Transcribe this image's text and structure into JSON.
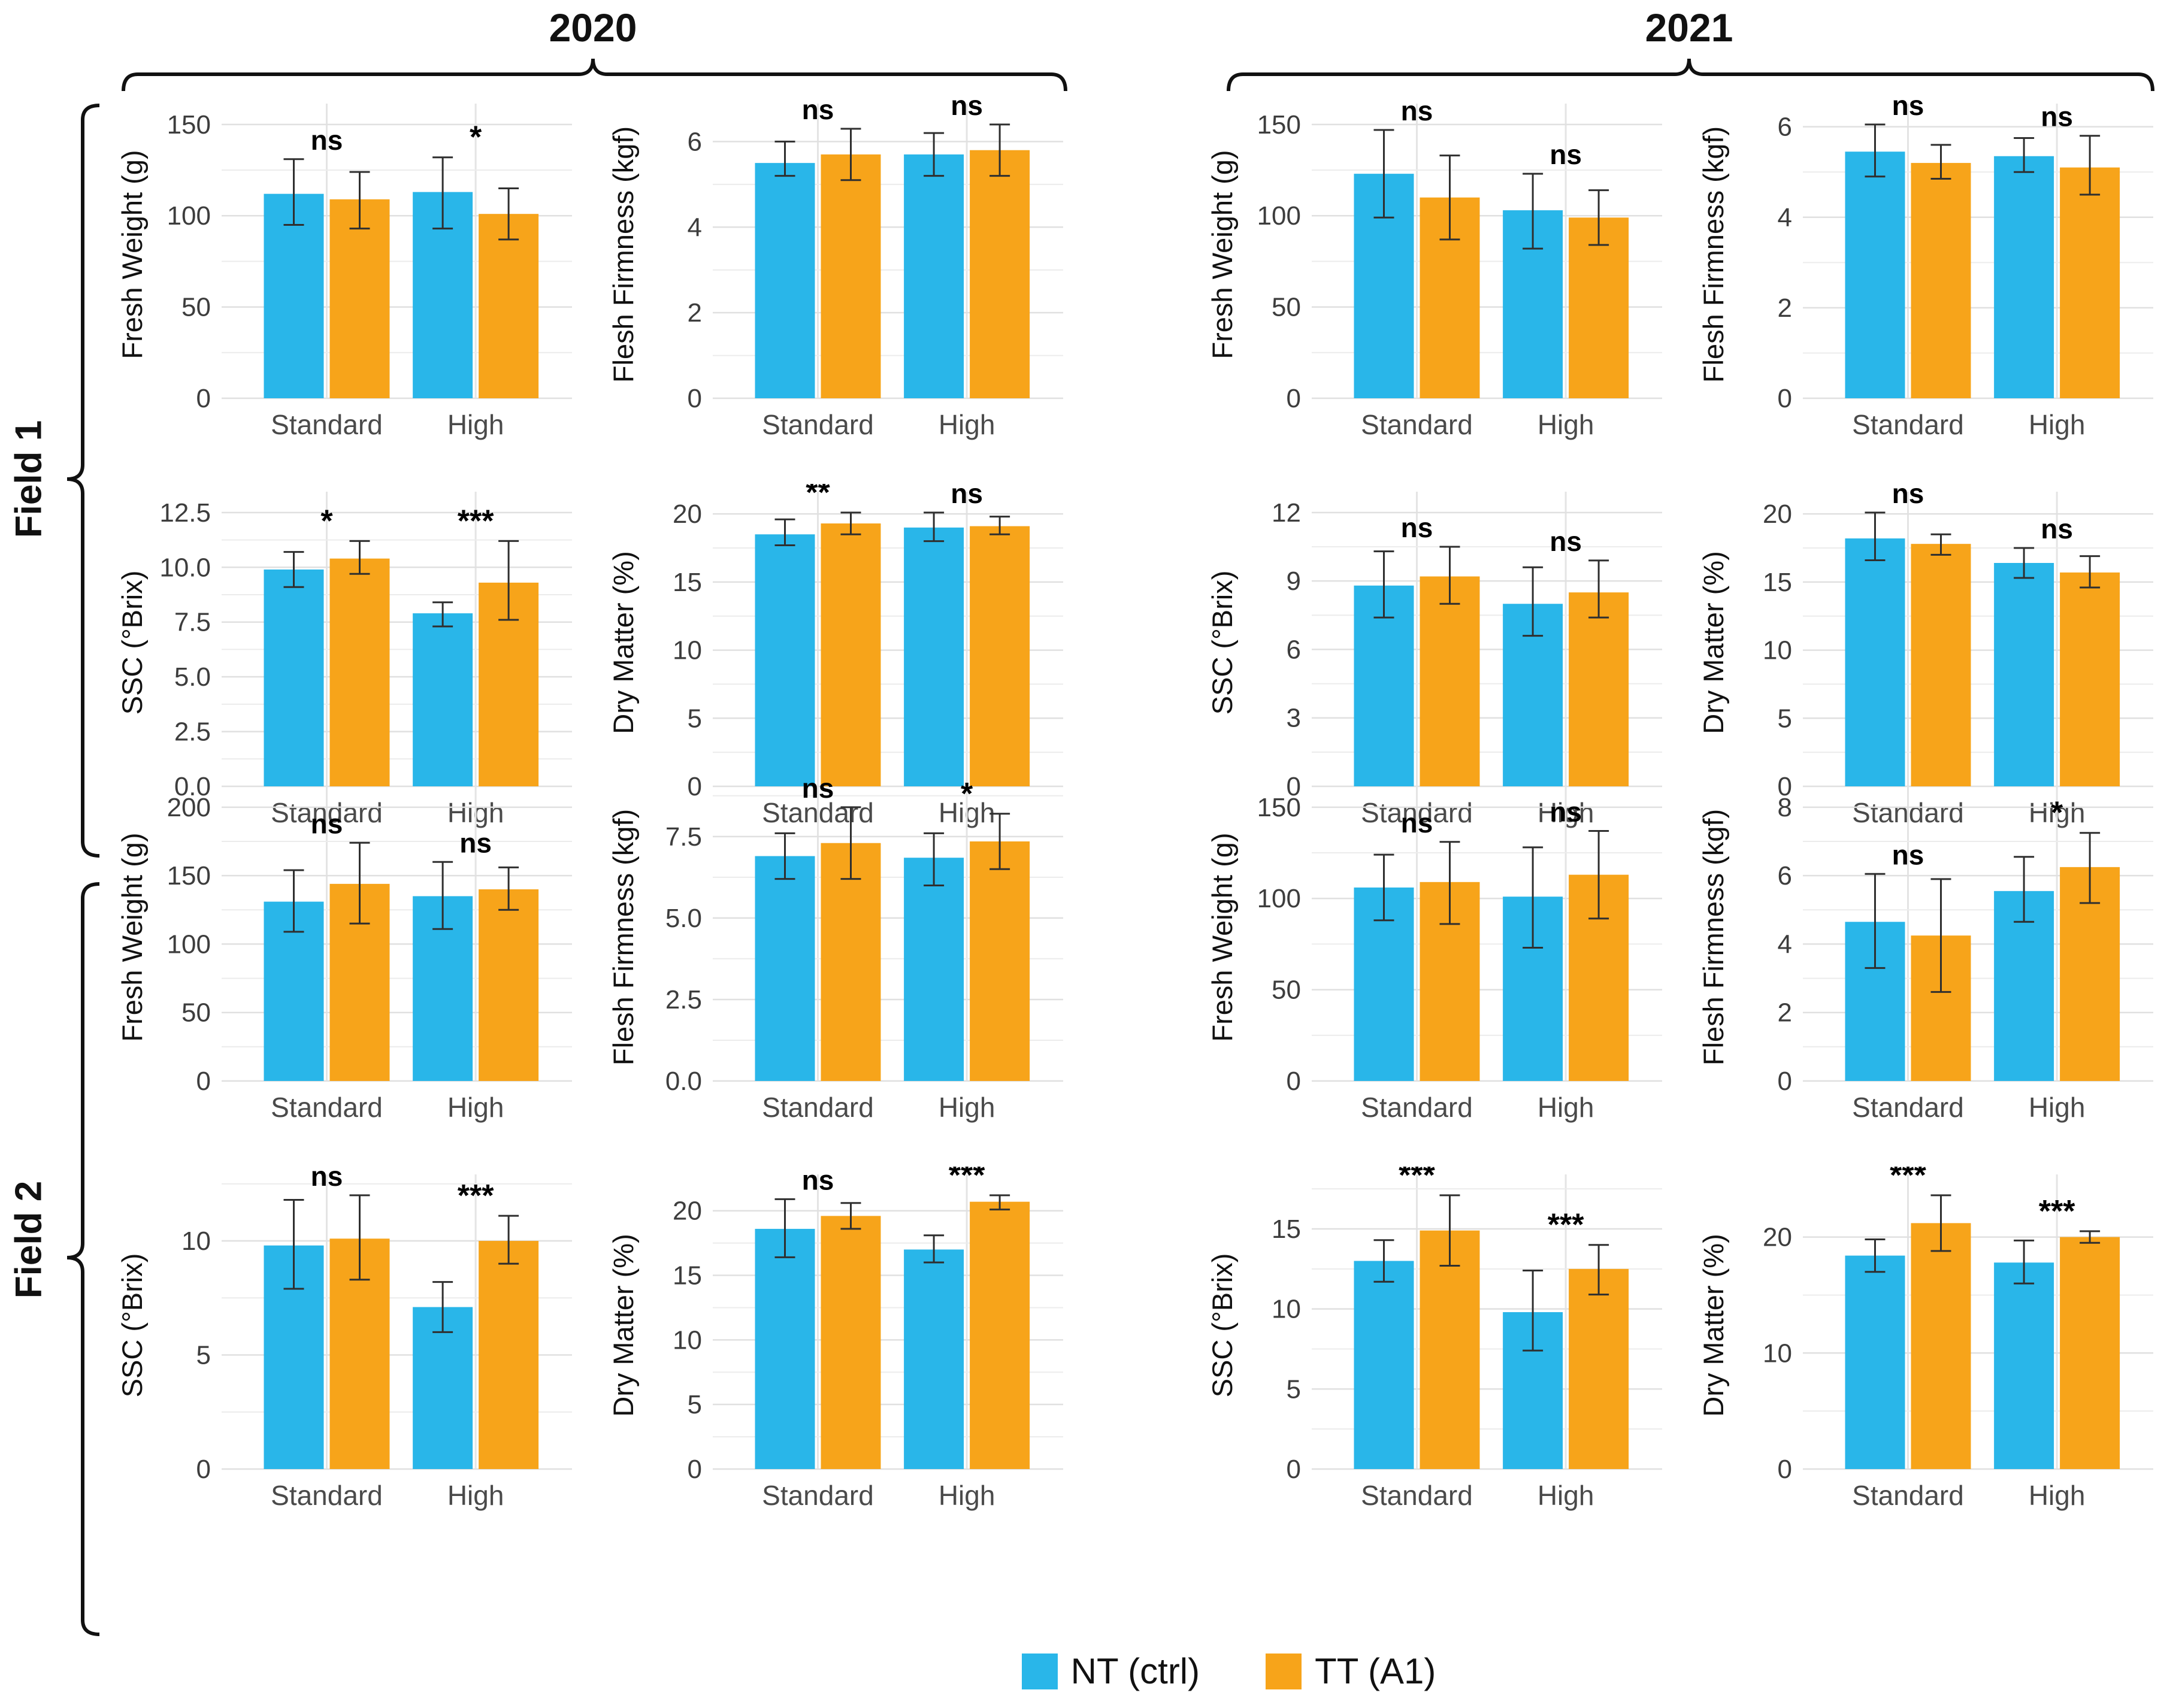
{
  "figure": {
    "year_headers": [
      "2020",
      "2021"
    ],
    "field_labels": [
      "Field 1",
      "Field 2"
    ],
    "legend": [
      {
        "label": "NT (ctrl)",
        "color": "#29B6E9"
      },
      {
        "label": "TT (A1)",
        "color": "#F7A41A"
      }
    ],
    "colors": {
      "nt_bar": "#29B6E9",
      "tt_bar": "#F7A41A",
      "grid_major": "#E0E0E0",
      "grid_minor": "#ECECEC",
      "grid_vertical": "#E4E4E4",
      "error_bar": "#2F2F2F",
      "tick_text": "#3D3D3D",
      "category_text": "#4A4A4A",
      "axis_title_text": "#111111",
      "significance_text": "#000000"
    }
  },
  "chart_data": [
    {
      "type": "bar",
      "field": "Field 1",
      "year": "2020",
      "metric": "fresh_weight",
      "ylabel": "Fresh Weight (g)",
      "categories": [
        "Standard",
        "High"
      ],
      "yticks": [
        0,
        50,
        100,
        150
      ],
      "ytick_labels": [
        "0",
        "50",
        "100",
        "150"
      ],
      "significance": [
        "ns",
        "*"
      ],
      "series": [
        {
          "name": "NT (ctrl)",
          "values": [
            112,
            113
          ],
          "err_low": [
            95,
            93
          ],
          "err_high": [
            131,
            132
          ]
        },
        {
          "name": "TT (A1)",
          "values": [
            109,
            101
          ],
          "err_low": [
            93,
            87
          ],
          "err_high": [
            124,
            115
          ]
        }
      ]
    },
    {
      "type": "bar",
      "field": "Field 1",
      "year": "2020",
      "metric": "flesh_firmness",
      "ylabel": "Flesh Firmness (kgf)",
      "categories": [
        "Standard",
        "High"
      ],
      "yticks": [
        0,
        2,
        4,
        6
      ],
      "ytick_labels": [
        "0",
        "2",
        "4",
        "6"
      ],
      "significance": [
        "ns",
        "ns"
      ],
      "series": [
        {
          "name": "NT (ctrl)",
          "values": [
            5.5,
            5.7
          ],
          "err_low": [
            5.2,
            5.2
          ],
          "err_high": [
            6.0,
            6.2
          ]
        },
        {
          "name": "TT (A1)",
          "values": [
            5.7,
            5.8
          ],
          "err_low": [
            5.1,
            5.2
          ],
          "err_high": [
            6.3,
            6.4
          ]
        }
      ]
    },
    {
      "type": "bar",
      "field": "Field 1",
      "year": "2020",
      "metric": "ssc",
      "ylabel": "SSC (°Brix)",
      "categories": [
        "Standard",
        "High"
      ],
      "yticks": [
        0,
        2.5,
        5,
        7.5,
        10,
        12.5
      ],
      "ytick_labels": [
        "0.0",
        "2.5",
        "5.0",
        "7.5",
        "10.0",
        "12.5"
      ],
      "significance": [
        "*",
        "***"
      ],
      "series": [
        {
          "name": "NT (ctrl)",
          "values": [
            9.9,
            7.9
          ],
          "err_low": [
            9.1,
            7.3
          ],
          "err_high": [
            10.7,
            8.4
          ]
        },
        {
          "name": "TT (A1)",
          "values": [
            10.4,
            9.3
          ],
          "err_low": [
            9.7,
            7.6
          ],
          "err_high": [
            11.2,
            11.2
          ]
        }
      ]
    },
    {
      "type": "bar",
      "field": "Field 1",
      "year": "2020",
      "metric": "dry_matter",
      "ylabel": "Dry Matter (%)",
      "categories": [
        "Standard",
        "High"
      ],
      "yticks": [
        0,
        5,
        10,
        15,
        20
      ],
      "ytick_labels": [
        "0",
        "5",
        "10",
        "15",
        "20"
      ],
      "significance": [
        "**",
        "ns"
      ],
      "series": [
        {
          "name": "NT (ctrl)",
          "values": [
            18.5,
            19.0
          ],
          "err_low": [
            17.7,
            18.0
          ],
          "err_high": [
            19.6,
            20.1
          ]
        },
        {
          "name": "TT (A1)",
          "values": [
            19.3,
            19.1
          ],
          "err_low": [
            18.5,
            18.5
          ],
          "err_high": [
            20.1,
            19.8
          ]
        }
      ]
    },
    {
      "type": "bar",
      "field": "Field 1",
      "year": "2021",
      "metric": "fresh_weight",
      "ylabel": "Fresh Weight (g)",
      "categories": [
        "Standard",
        "High"
      ],
      "yticks": [
        0,
        50,
        100,
        150
      ],
      "ytick_labels": [
        "0",
        "50",
        "100",
        "150"
      ],
      "significance": [
        "ns",
        "ns"
      ],
      "series": [
        {
          "name": "NT (ctrl)",
          "values": [
            123,
            103
          ],
          "err_low": [
            99,
            82
          ],
          "err_high": [
            147,
            123
          ]
        },
        {
          "name": "TT (A1)",
          "values": [
            110,
            99
          ],
          "err_low": [
            87,
            84
          ],
          "err_high": [
            133,
            114
          ]
        }
      ]
    },
    {
      "type": "bar",
      "field": "Field 1",
      "year": "2021",
      "metric": "flesh_firmness",
      "ylabel": "Flesh Firmness (kgf)",
      "categories": [
        "Standard",
        "High"
      ],
      "yticks": [
        0,
        2,
        4,
        6
      ],
      "ytick_labels": [
        "0",
        "2",
        "4",
        "6"
      ],
      "significance": [
        "ns",
        "ns"
      ],
      "series": [
        {
          "name": "NT (ctrl)",
          "values": [
            5.45,
            5.35
          ],
          "err_low": [
            4.9,
            5.0
          ],
          "err_high": [
            6.05,
            5.75
          ]
        },
        {
          "name": "TT (A1)",
          "values": [
            5.2,
            5.1
          ],
          "err_low": [
            4.85,
            4.5
          ],
          "err_high": [
            5.6,
            5.8
          ]
        }
      ]
    },
    {
      "type": "bar",
      "field": "Field 1",
      "year": "2021",
      "metric": "ssc",
      "ylabel": "SSC (°Brix)",
      "categories": [
        "Standard",
        "High"
      ],
      "yticks": [
        0,
        3,
        6,
        9,
        12
      ],
      "ytick_labels": [
        "0",
        "3",
        "6",
        "9",
        "12"
      ],
      "significance": [
        "ns",
        "ns"
      ],
      "series": [
        {
          "name": "NT (ctrl)",
          "values": [
            8.8,
            8.0
          ],
          "err_low": [
            7.4,
            6.6
          ],
          "err_high": [
            10.3,
            9.6
          ]
        },
        {
          "name": "TT (A1)",
          "values": [
            9.2,
            8.5
          ],
          "err_low": [
            8.0,
            7.4
          ],
          "err_high": [
            10.5,
            9.9
          ]
        }
      ]
    },
    {
      "type": "bar",
      "field": "Field 1",
      "year": "2021",
      "metric": "dry_matter",
      "ylabel": "Dry Matter (%)",
      "categories": [
        "Standard",
        "High"
      ],
      "yticks": [
        0,
        5,
        10,
        15,
        20
      ],
      "ytick_labels": [
        "0",
        "5",
        "10",
        "15",
        "20"
      ],
      "significance": [
        "ns",
        "ns"
      ],
      "series": [
        {
          "name": "NT (ctrl)",
          "values": [
            18.2,
            16.4
          ],
          "err_low": [
            16.6,
            15.3
          ],
          "err_high": [
            20.1,
            17.5
          ]
        },
        {
          "name": "TT (A1)",
          "values": [
            17.8,
            15.7
          ],
          "err_low": [
            17.0,
            14.6
          ],
          "err_high": [
            18.5,
            16.9
          ]
        }
      ]
    },
    {
      "type": "bar",
      "field": "Field 2",
      "year": "2020",
      "metric": "fresh_weight",
      "ylabel": "Fresh Weight (g)",
      "categories": [
        "Standard",
        "High"
      ],
      "yticks": [
        0,
        50,
        100,
        150,
        200
      ],
      "ytick_labels": [
        "0",
        "50",
        "100",
        "150",
        "200"
      ],
      "significance": [
        "ns",
        "ns"
      ],
      "series": [
        {
          "name": "NT (ctrl)",
          "values": [
            131,
            135
          ],
          "err_low": [
            109,
            111
          ],
          "err_high": [
            154,
            160
          ]
        },
        {
          "name": "TT (A1)",
          "values": [
            144,
            140
          ],
          "err_low": [
            115,
            125
          ],
          "err_high": [
            174,
            156
          ]
        }
      ]
    },
    {
      "type": "bar",
      "field": "Field 2",
      "year": "2020",
      "metric": "flesh_firmness",
      "ylabel": "Flesh Firmness (kgf)",
      "categories": [
        "Standard",
        "High"
      ],
      "yticks": [
        0,
        2.5,
        5,
        7.5
      ],
      "ytick_labels": [
        "0.0",
        "2.5",
        "5.0",
        "7.5"
      ],
      "significance": [
        "ns",
        "*"
      ],
      "series": [
        {
          "name": "NT (ctrl)",
          "values": [
            6.9,
            6.85
          ],
          "err_low": [
            6.2,
            6.0
          ],
          "err_high": [
            7.6,
            7.6
          ]
        },
        {
          "name": "TT (A1)",
          "values": [
            7.3,
            7.35
          ],
          "err_low": [
            6.2,
            6.5
          ],
          "err_high": [
            8.4,
            8.2
          ]
        }
      ]
    },
    {
      "type": "bar",
      "field": "Field 2",
      "year": "2020",
      "metric": "ssc",
      "ylabel": "SSC (°Brix)",
      "categories": [
        "Standard",
        "High"
      ],
      "yticks": [
        0,
        5,
        10
      ],
      "ytick_labels": [
        "0",
        "5",
        "10"
      ],
      "significance": [
        "ns",
        "***"
      ],
      "series": [
        {
          "name": "NT (ctrl)",
          "values": [
            9.8,
            7.1
          ],
          "err_low": [
            7.9,
            6.0
          ],
          "err_high": [
            11.8,
            8.2
          ]
        },
        {
          "name": "TT (A1)",
          "values": [
            10.1,
            10.0
          ],
          "err_low": [
            8.3,
            9.0
          ],
          "err_high": [
            12.0,
            11.1
          ]
        }
      ]
    },
    {
      "type": "bar",
      "field": "Field 2",
      "year": "2020",
      "metric": "dry_matter",
      "ylabel": "Dry Matter (%)",
      "categories": [
        "Standard",
        "High"
      ],
      "yticks": [
        0,
        5,
        10,
        15,
        20
      ],
      "ytick_labels": [
        "0",
        "5",
        "10",
        "15",
        "20"
      ],
      "significance": [
        "ns",
        "***"
      ],
      "series": [
        {
          "name": "NT (ctrl)",
          "values": [
            18.6,
            17.0
          ],
          "err_low": [
            16.4,
            16.0
          ],
          "err_high": [
            20.9,
            18.1
          ]
        },
        {
          "name": "TT (A1)",
          "values": [
            19.6,
            20.7
          ],
          "err_low": [
            18.6,
            20.1
          ],
          "err_high": [
            20.6,
            21.2
          ]
        }
      ]
    },
    {
      "type": "bar",
      "field": "Field 2",
      "year": "2021",
      "metric": "fresh_weight",
      "ylabel": "Fresh Weight (g)",
      "categories": [
        "Standard",
        "High"
      ],
      "yticks": [
        0,
        50,
        100,
        150
      ],
      "ytick_labels": [
        "0",
        "50",
        "100",
        "150"
      ],
      "significance": [
        "ns",
        "ns"
      ],
      "series": [
        {
          "name": "NT (ctrl)",
          "values": [
            106,
            101
          ],
          "err_low": [
            88,
            73
          ],
          "err_high": [
            124,
            128
          ]
        },
        {
          "name": "TT (A1)",
          "values": [
            109,
            113
          ],
          "err_low": [
            86,
            89
          ],
          "err_high": [
            131,
            137
          ]
        }
      ]
    },
    {
      "type": "bar",
      "field": "Field 2",
      "year": "2021",
      "metric": "flesh_firmness",
      "ylabel": "Flesh Firmness (kgf)",
      "categories": [
        "Standard",
        "High"
      ],
      "yticks": [
        0,
        2,
        4,
        6,
        8
      ],
      "ytick_labels": [
        "0",
        "2",
        "4",
        "6",
        "8"
      ],
      "significance": [
        "ns",
        "*"
      ],
      "series": [
        {
          "name": "NT (ctrl)",
          "values": [
            4.65,
            5.55
          ],
          "err_low": [
            3.3,
            4.65
          ],
          "err_high": [
            6.05,
            6.55
          ]
        },
        {
          "name": "TT (A1)",
          "values": [
            4.25,
            6.25
          ],
          "err_low": [
            2.6,
            5.2
          ],
          "err_high": [
            5.9,
            7.25
          ]
        }
      ]
    },
    {
      "type": "bar",
      "field": "Field 2",
      "year": "2021",
      "metric": "ssc",
      "ylabel": "SSC (°Brix)",
      "categories": [
        "Standard",
        "High"
      ],
      "yticks": [
        0,
        5,
        10,
        15
      ],
      "ytick_labels": [
        "0",
        "5",
        "10",
        "15"
      ],
      "significance": [
        "***",
        "***"
      ],
      "series": [
        {
          "name": "NT (ctrl)",
          "values": [
            13.0,
            9.8
          ],
          "err_low": [
            11.7,
            7.4
          ],
          "err_high": [
            14.3,
            12.4
          ]
        },
        {
          "name": "TT (A1)",
          "values": [
            14.9,
            12.5
          ],
          "err_low": [
            12.7,
            10.9
          ],
          "err_high": [
            17.1,
            14.0
          ]
        }
      ]
    },
    {
      "type": "bar",
      "field": "Field 2",
      "year": "2021",
      "metric": "dry_matter",
      "ylabel": "Dry Matter (%)",
      "categories": [
        "Standard",
        "High"
      ],
      "yticks": [
        0,
        10,
        20
      ],
      "ytick_labels": [
        "0",
        "10",
        "20"
      ],
      "significance": [
        "***",
        "***"
      ],
      "series": [
        {
          "name": "NT (ctrl)",
          "values": [
            18.4,
            17.8
          ],
          "err_low": [
            17.0,
            16.0
          ],
          "err_high": [
            19.8,
            19.7
          ]
        },
        {
          "name": "TT (A1)",
          "values": [
            21.2,
            20.0
          ],
          "err_low": [
            18.8,
            19.5
          ],
          "err_high": [
            23.6,
            20.5
          ]
        }
      ]
    }
  ],
  "layout_hints": {
    "grid": "on",
    "legend_position": "bottom-center",
    "panel_grid": "2x2 per field-year quadrant"
  }
}
